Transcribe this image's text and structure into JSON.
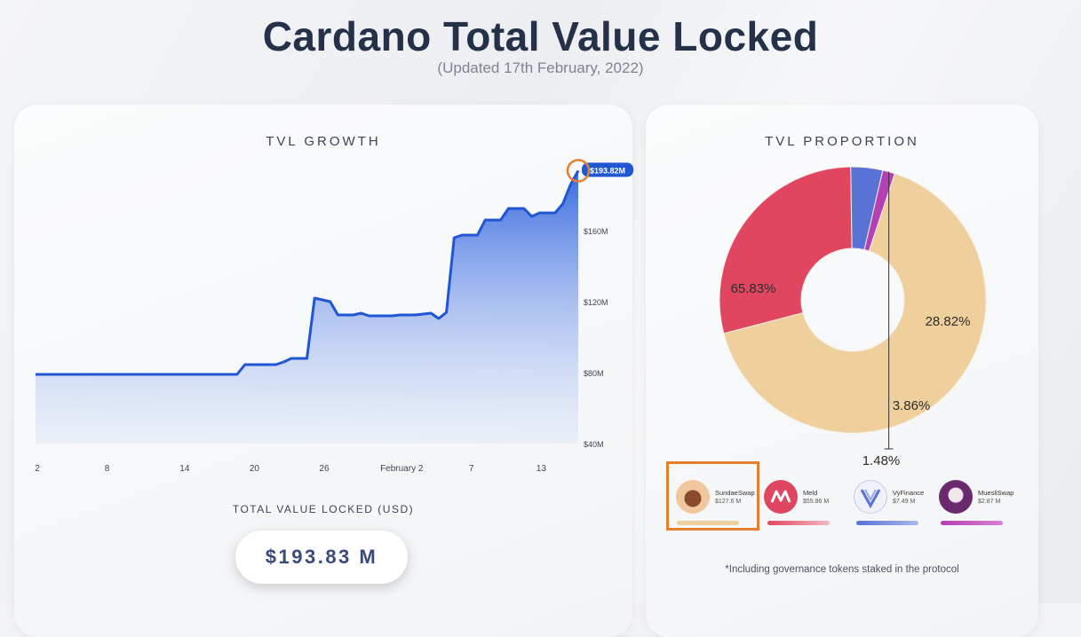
{
  "header": {
    "title": "Cardano Total Value Locked",
    "subtitle": "(Updated 17th February, 2022)"
  },
  "left_panel": {
    "title": "TVL GROWTH",
    "total_label": "TOTAL VALUE LOCKED (USD)",
    "total_value": "$193.83 M"
  },
  "right_panel": {
    "title": "TVL PROPORTION",
    "footnote": "*Including governance tokens staked in the protocol",
    "legend": [
      {
        "name": "SundaeSwap",
        "value": "$127.6 M",
        "color": "#efcf9c",
        "icon": "sundaeswap-logo"
      },
      {
        "name": "Meld",
        "value": "$55.86 M",
        "color": "#e0465f",
        "icon": "meld-logo"
      },
      {
        "name": "VyFinance",
        "value": "$7.49 M",
        "color": "#5a72d6",
        "icon": "vyfinance-logo"
      },
      {
        "name": "MuesliSwap",
        "value": "$2.87 M",
        "color": "#b53fb4",
        "icon": "muesliswap-logo"
      }
    ]
  },
  "chart_data": [
    {
      "type": "area",
      "title": "TVL GROWTH",
      "x_tick_labels": [
        "2",
        "8",
        "14",
        "20",
        "26",
        "February 2",
        "7",
        "13"
      ],
      "y_tick_labels": [
        "$40M",
        "$80M",
        "$120M",
        "$160M"
      ],
      "ylim": [
        40,
        200
      ],
      "annotation": "$193.82M",
      "series": [
        {
          "values": [
            79,
            79,
            79,
            79,
            79,
            79,
            79,
            79,
            79,
            79,
            79,
            79,
            79,
            79,
            79,
            79,
            79,
            79,
            79,
            79,
            79,
            79,
            79,
            79,
            79,
            79,
            79,
            84.5,
            84.5,
            84.5,
            84.5,
            84.5,
            86,
            88,
            88,
            88,
            122,
            121,
            120,
            112.5,
            112.5,
            112.5,
            113.5,
            112,
            112,
            112,
            112,
            112.5,
            112.5,
            112.5,
            113,
            113.5,
            110.5,
            114,
            156,
            157.5,
            157.5,
            157.5,
            166,
            166,
            166,
            172.5,
            172.5,
            172.5,
            168,
            170,
            170,
            170,
            175,
            186,
            193.82
          ],
          "color": "#1f56d4"
        }
      ]
    },
    {
      "type": "pie",
      "title": "TVL PROPORTION",
      "labels": [
        "SundaeSwap",
        "Meld",
        "VyFinance",
        "MuesliSwap"
      ],
      "values": [
        65.83,
        28.82,
        3.86,
        1.48
      ],
      "value_labels": [
        "65.83%",
        "28.82%",
        "3.86%",
        "1.48%"
      ],
      "colors": [
        "#efcf9c",
        "#e0465f",
        "#5a72d6",
        "#b53fb4"
      ]
    }
  ]
}
